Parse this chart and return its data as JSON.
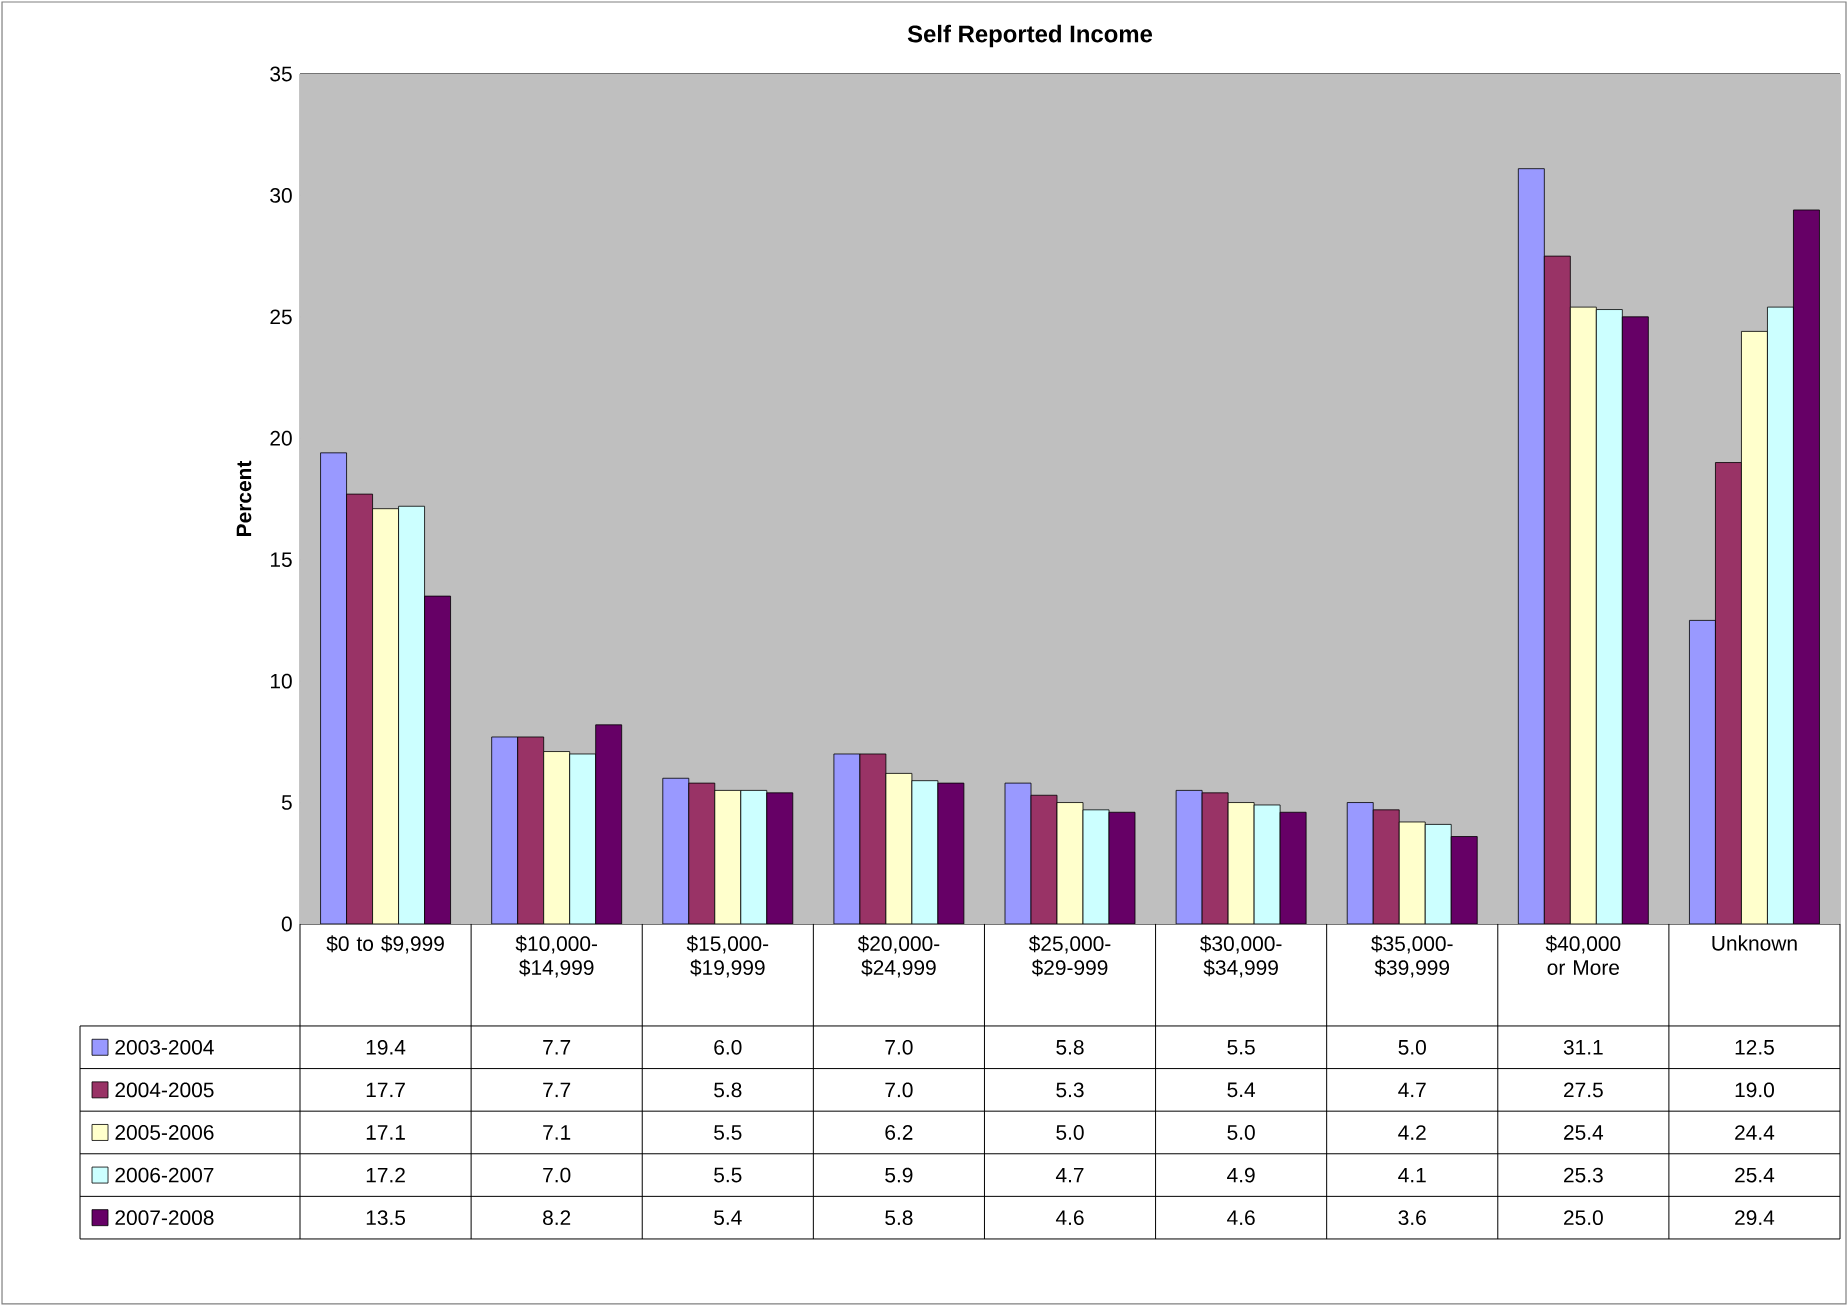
{
  "chart_data": {
    "type": "bar",
    "title": "Self Reported Income",
    "ylabel": "Percent",
    "categories": [
      "$0 to $9,999",
      "$10,000-$14,999",
      "$15,000-$19,999",
      "$20,000-$24,999",
      "$25,000-$29-999",
      "$30,000-$34,999",
      "$35,000-$39,999",
      "$40,000 or More",
      "Unknown"
    ],
    "series": [
      {
        "name": "2003-2004",
        "color": "#9999ff",
        "values": [
          19.4,
          7.7,
          6.0,
          7.0,
          5.8,
          5.5,
          5.0,
          31.1,
          12.5
        ],
        "value_labels": [
          "19.4",
          "7.7",
          "6.0",
          "7.0",
          "5.8",
          "5.5",
          "5.0",
          "31.1",
          "12.5"
        ]
      },
      {
        "name": "2004-2005",
        "color": "#993366",
        "values": [
          17.7,
          7.7,
          5.8,
          7.0,
          5.3,
          5.4,
          4.7,
          27.5,
          19.0
        ],
        "value_labels": [
          "17.7",
          "7.7",
          "5.8",
          "7.0",
          "5.3",
          "5.4",
          "4.7",
          "27.5",
          "19.0"
        ]
      },
      {
        "name": "2005-2006",
        "color": "#ffffcc",
        "values": [
          17.1,
          7.1,
          5.5,
          6.2,
          5.0,
          5.0,
          4.2,
          25.4,
          24.4
        ],
        "value_labels": [
          "17.1",
          "7.1",
          "5.5",
          "6.2",
          "5.0",
          "5.0",
          "4.2",
          "25.4",
          "24.4"
        ]
      },
      {
        "name": "2006-2007",
        "color": "#ccffff",
        "values": [
          17.2,
          7.0,
          5.5,
          5.9,
          4.7,
          4.9,
          4.1,
          25.3,
          25.4
        ],
        "value_labels": [
          "17.2",
          "7.0",
          "5.5",
          "5.9",
          "4.7",
          "4.9",
          "4.1",
          "25.3",
          "25.4"
        ]
      },
      {
        "name": "2007-2008",
        "color": "#660066",
        "values": [
          13.5,
          8.2,
          5.4,
          5.8,
          4.6,
          4.6,
          3.6,
          25.0,
          29.4
        ],
        "value_labels": [
          "13.5",
          "8.2",
          "5.4",
          "5.8",
          "4.6",
          "4.6",
          "3.6",
          "25.0",
          "29.4"
        ]
      }
    ],
    "ylim": [
      0,
      35
    ],
    "yticks": [
      0,
      5,
      10,
      15,
      20,
      25,
      30,
      35
    ],
    "grid": "y",
    "legend": "bottom left"
  }
}
